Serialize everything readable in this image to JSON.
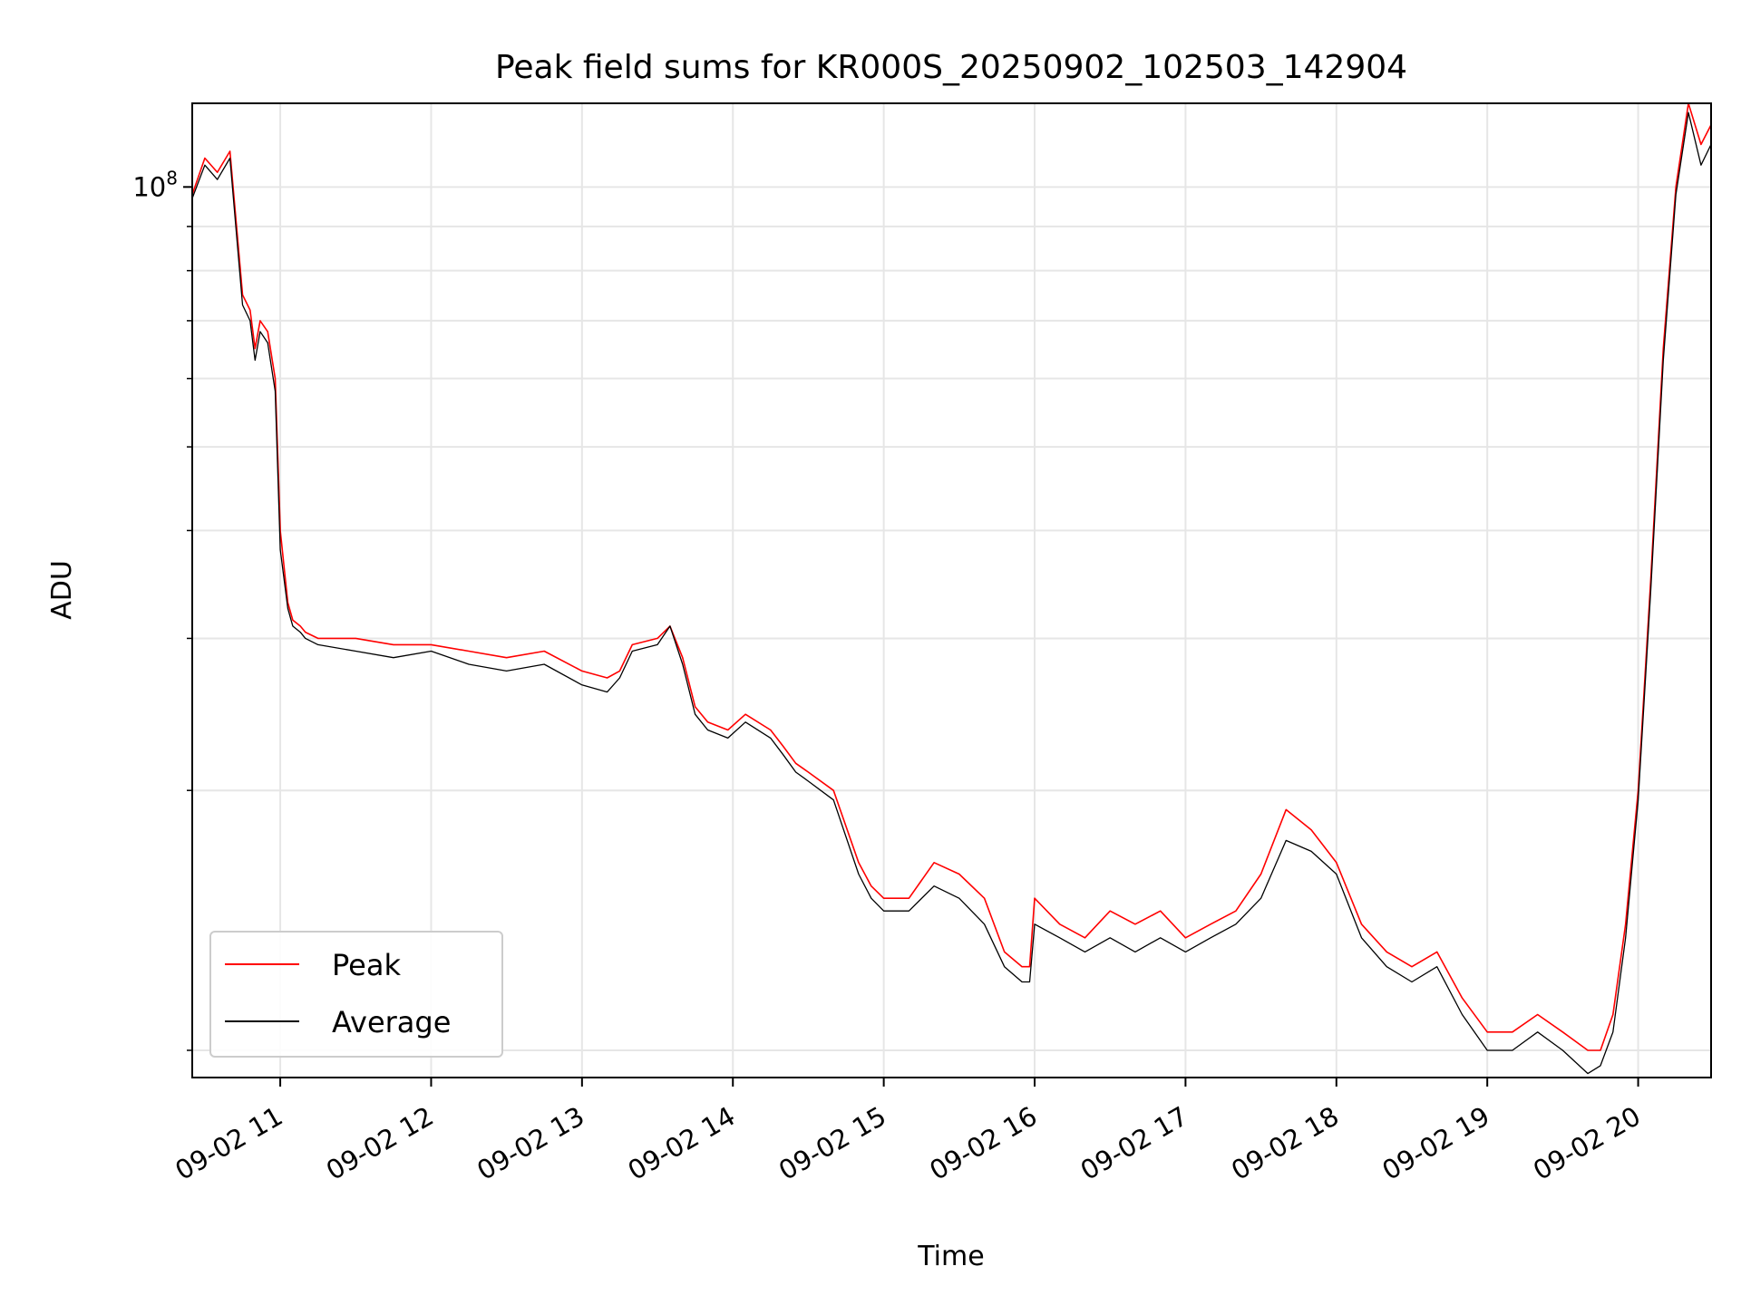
{
  "chart_data": {
    "type": "line",
    "title": "Peak field sums for KR000S_20250902_102503_142904",
    "xlabel": "Time",
    "ylabel": "ADU",
    "y_scale": "log",
    "grid": true,
    "legend_position": "lower-left",
    "xlim": [
      "09-02 10:25",
      "09-02 20:29"
    ],
    "ylim": [
      9300000,
      125000000
    ],
    "x_tick_labels": [
      "09-02 11",
      "09-02 12",
      "09-02 13",
      "09-02 14",
      "09-02 15",
      "09-02 16",
      "09-02 17",
      "09-02 18",
      "09-02 19",
      "09-02 20"
    ],
    "x_ticks": [
      "09-02 11:00",
      "09-02 12:00",
      "09-02 13:00",
      "09-02 14:00",
      "09-02 15:00",
      "09-02 16:00",
      "09-02 17:00",
      "09-02 18:00",
      "09-02 19:00",
      "09-02 20:00"
    ],
    "y_major_tick_labels": [
      {
        "base": "10",
        "exp": "8",
        "value": 100000000
      }
    ],
    "y_minor_ticks": [
      10000000,
      20000000,
      30000000,
      40000000,
      50000000,
      60000000,
      70000000,
      80000000,
      90000000
    ],
    "series": [
      {
        "name": "Peak",
        "color": "#ff0000",
        "x": [
          "09-02 10:25",
          "09-02 10:30",
          "09-02 10:35",
          "09-02 10:40",
          "09-02 10:45",
          "09-02 10:48",
          "09-02 10:50",
          "09-02 10:52",
          "09-02 10:55",
          "09-02 10:58",
          "09-02 11:00",
          "09-02 11:03",
          "09-02 11:05",
          "09-02 11:08",
          "09-02 11:10",
          "09-02 11:15",
          "09-02 11:30",
          "09-02 11:45",
          "09-02 12:00",
          "09-02 12:15",
          "09-02 12:30",
          "09-02 12:45",
          "09-02 13:00",
          "09-02 13:10",
          "09-02 13:15",
          "09-02 13:20",
          "09-02 13:30",
          "09-02 13:35",
          "09-02 13:40",
          "09-02 13:45",
          "09-02 13:50",
          "09-02 13:58",
          "09-02 14:05",
          "09-02 14:15",
          "09-02 14:20",
          "09-02 14:25",
          "09-02 14:30",
          "09-02 14:40",
          "09-02 14:50",
          "09-02 14:55",
          "09-02 15:00",
          "09-02 15:10",
          "09-02 15:20",
          "09-02 15:30",
          "09-02 15:40",
          "09-02 15:48",
          "09-02 15:55",
          "09-02 15:58",
          "09-02 16:00",
          "09-02 16:10",
          "09-02 16:20",
          "09-02 16:30",
          "09-02 16:40",
          "09-02 16:50",
          "09-02 17:00",
          "09-02 17:10",
          "09-02 17:20",
          "09-02 17:30",
          "09-02 17:40",
          "09-02 17:50",
          "09-02 18:00",
          "09-02 18:10",
          "09-02 18:20",
          "09-02 18:30",
          "09-02 18:40",
          "09-02 18:50",
          "09-02 19:00",
          "09-02 19:10",
          "09-02 19:20",
          "09-02 19:30",
          "09-02 19:40",
          "09-02 19:45",
          "09-02 19:50",
          "09-02 19:55",
          "09-02 20:00",
          "09-02 20:05",
          "09-02 20:10",
          "09-02 20:15",
          "09-02 20:20",
          "09-02 20:25",
          "09-02 20:29"
        ],
        "y": [
          98000000,
          108000000,
          104000000,
          110000000,
          75000000,
          72000000,
          65000000,
          70000000,
          68000000,
          60000000,
          40000000,
          33000000,
          31500000,
          31000000,
          30500000,
          30000000,
          30000000,
          29500000,
          29500000,
          29000000,
          28500000,
          29000000,
          27500000,
          27000000,
          27500000,
          29500000,
          30000000,
          31000000,
          28500000,
          25000000,
          24000000,
          23500000,
          24500000,
          23500000,
          22500000,
          21500000,
          21000000,
          20000000,
          16500000,
          15500000,
          15000000,
          15000000,
          16500000,
          16000000,
          15000000,
          13000000,
          12500000,
          12500000,
          15000000,
          14000000,
          13500000,
          14500000,
          14000000,
          14500000,
          13500000,
          14000000,
          14500000,
          16000000,
          19000000,
          18000000,
          16500000,
          14000000,
          13000000,
          12500000,
          13000000,
          11500000,
          10500000,
          10500000,
          11000000,
          10500000,
          10000000,
          10000000,
          11000000,
          14000000,
          20000000,
          35000000,
          65000000,
          100000000,
          125000000,
          112000000,
          118000000
        ]
      },
      {
        "name": "Average",
        "color": "#000000",
        "x": [
          "09-02 10:25",
          "09-02 10:30",
          "09-02 10:35",
          "09-02 10:40",
          "09-02 10:45",
          "09-02 10:48",
          "09-02 10:50",
          "09-02 10:52",
          "09-02 10:55",
          "09-02 10:58",
          "09-02 11:00",
          "09-02 11:03",
          "09-02 11:05",
          "09-02 11:08",
          "09-02 11:10",
          "09-02 11:15",
          "09-02 11:30",
          "09-02 11:45",
          "09-02 12:00",
          "09-02 12:15",
          "09-02 12:30",
          "09-02 12:45",
          "09-02 13:00",
          "09-02 13:10",
          "09-02 13:15",
          "09-02 13:20",
          "09-02 13:30",
          "09-02 13:35",
          "09-02 13:40",
          "09-02 13:45",
          "09-02 13:50",
          "09-02 13:58",
          "09-02 14:05",
          "09-02 14:15",
          "09-02 14:20",
          "09-02 14:25",
          "09-02 14:30",
          "09-02 14:40",
          "09-02 14:50",
          "09-02 14:55",
          "09-02 15:00",
          "09-02 15:10",
          "09-02 15:20",
          "09-02 15:30",
          "09-02 15:40",
          "09-02 15:48",
          "09-02 15:55",
          "09-02 15:58",
          "09-02 16:00",
          "09-02 16:10",
          "09-02 16:20",
          "09-02 16:30",
          "09-02 16:40",
          "09-02 16:50",
          "09-02 17:00",
          "09-02 17:10",
          "09-02 17:20",
          "09-02 17:30",
          "09-02 17:40",
          "09-02 17:50",
          "09-02 18:00",
          "09-02 18:10",
          "09-02 18:20",
          "09-02 18:30",
          "09-02 18:40",
          "09-02 18:50",
          "09-02 19:00",
          "09-02 19:10",
          "09-02 19:20",
          "09-02 19:30",
          "09-02 19:40",
          "09-02 19:45",
          "09-02 19:50",
          "09-02 19:55",
          "09-02 20:00",
          "09-02 20:05",
          "09-02 20:10",
          "09-02 20:15",
          "09-02 20:20",
          "09-02 20:25",
          "09-02 20:29"
        ],
        "y": [
          97000000,
          106000000,
          102000000,
          108000000,
          73000000,
          70000000,
          63000000,
          68000000,
          66000000,
          58000000,
          38000000,
          32500000,
          31000000,
          30500000,
          30000000,
          29500000,
          29000000,
          28500000,
          29000000,
          28000000,
          27500000,
          28000000,
          26500000,
          26000000,
          27000000,
          29000000,
          29500000,
          31000000,
          28000000,
          24500000,
          23500000,
          23000000,
          24000000,
          23000000,
          22000000,
          21000000,
          20500000,
          19500000,
          16000000,
          15000000,
          14500000,
          14500000,
          15500000,
          15000000,
          14000000,
          12500000,
          12000000,
          12000000,
          14000000,
          13500000,
          13000000,
          13500000,
          13000000,
          13500000,
          13000000,
          13500000,
          14000000,
          15000000,
          17500000,
          17000000,
          16000000,
          13500000,
          12500000,
          12000000,
          12500000,
          11000000,
          10000000,
          10000000,
          10500000,
          10000000,
          9400000,
          9600000,
          10500000,
          13500000,
          19500000,
          34000000,
          63000000,
          98000000,
          122000000,
          106000000,
          112000000
        ]
      }
    ]
  }
}
